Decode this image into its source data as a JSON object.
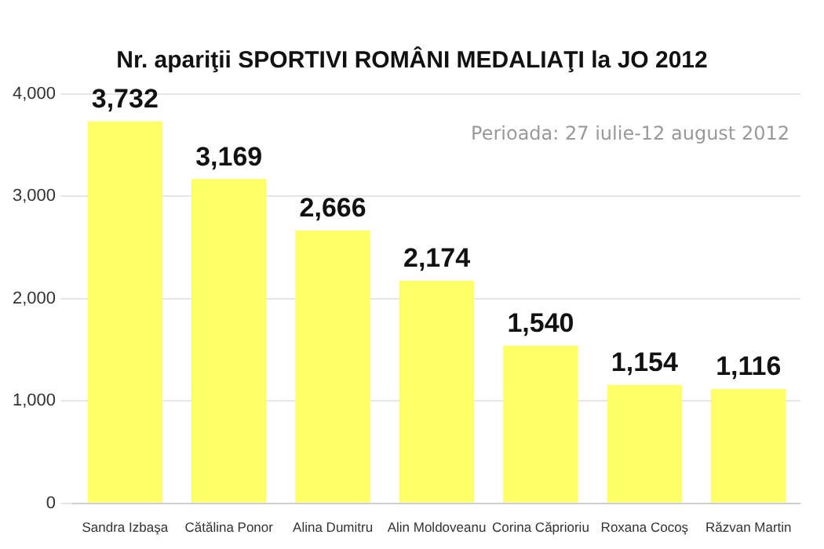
{
  "chart_data": {
    "type": "bar",
    "title": "Nr. apariţii SPORTIVI ROMÂNI MEDALIAŢI la JO 2012",
    "categories": [
      "Sandra Izbaşa",
      "Cătălina Ponor",
      "Alina Dumitru",
      "Alin Moldoveanu",
      "Corina Căprioriu",
      "Roxana Cocoş",
      "Răzvan Martin"
    ],
    "values": [
      3732,
      3169,
      2666,
      2174,
      1540,
      1154,
      1116
    ],
    "value_labels": [
      "3,732",
      "3,169",
      "2,666",
      "2,174",
      "1,540",
      "1,154",
      "1,116"
    ],
    "color": "#ffff66",
    "ylim": [
      0,
      4000
    ],
    "yticks": [
      0,
      {
        "value": 1000,
        "label": "1,000"
      },
      {
        "value": 2000,
        "label": "2,000"
      },
      {
        "value": 3000,
        "label": "3,000"
      },
      {
        "value": 4000,
        "label": "4,000"
      }
    ],
    "grid": "y",
    "annotations": [
      "Perioada: 27 iulie-12 august 2012"
    ]
  }
}
